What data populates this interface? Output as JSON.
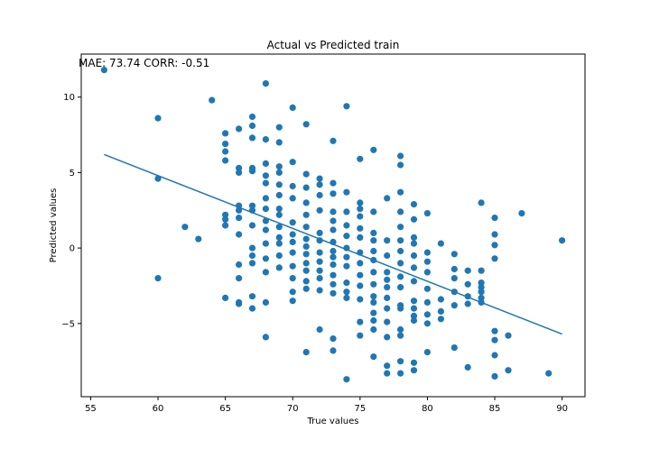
{
  "chart_data": {
    "type": "scatter",
    "title": "Actual vs Predicted train",
    "xlabel": "True values",
    "ylabel": "Predicted values",
    "annotation": "MAE: 73.74   CORR: -0.51",
    "xlim": [
      54.3,
      91.7
    ],
    "ylim": [
      -9.85,
      12.85
    ],
    "xticks": [
      55,
      60,
      65,
      70,
      75,
      80,
      85,
      90
    ],
    "yticks": [
      -5,
      0,
      5,
      10
    ],
    "grid": false,
    "legend": "none",
    "colors": {
      "points": "#1f77b4",
      "line": "#1f77b4"
    },
    "fit_line": {
      "x": [
        56,
        90
      ],
      "y": [
        6.2,
        -5.7
      ]
    },
    "points": [
      [
        56,
        11.8
      ],
      [
        60,
        8.6
      ],
      [
        60,
        4.6
      ],
      [
        60,
        -2.0
      ],
      [
        62,
        1.4
      ],
      [
        63,
        0.6
      ],
      [
        64,
        9.8
      ],
      [
        65,
        7.6
      ],
      [
        65,
        6.9
      ],
      [
        65,
        6.4
      ],
      [
        65,
        5.8
      ],
      [
        65,
        2.2
      ],
      [
        65,
        1.9
      ],
      [
        65,
        1.5
      ],
      [
        65,
        -3.3
      ],
      [
        66,
        7.9
      ],
      [
        66,
        5.3
      ],
      [
        66,
        5.0
      ],
      [
        66,
        2.8
      ],
      [
        66,
        2.5
      ],
      [
        66,
        2.0
      ],
      [
        66,
        0.9
      ],
      [
        66,
        -1.1
      ],
      [
        66,
        -2.0
      ],
      [
        66,
        -3.6
      ],
      [
        66,
        -3.7
      ],
      [
        67,
        8.7
      ],
      [
        67,
        8.1
      ],
      [
        67,
        7.3
      ],
      [
        67,
        5.3
      ],
      [
        67,
        5.1
      ],
      [
        67,
        2.8
      ],
      [
        67,
        2.5
      ],
      [
        67,
        1.5
      ],
      [
        67,
        0.0
      ],
      [
        67,
        -0.5
      ],
      [
        67,
        -1.0
      ],
      [
        67,
        -3.2
      ],
      [
        67,
        -4.0
      ],
      [
        68,
        10.9
      ],
      [
        68,
        7.2
      ],
      [
        68,
        5.6
      ],
      [
        68,
        4.8
      ],
      [
        68,
        4.3
      ],
      [
        68,
        3.3
      ],
      [
        68,
        2.6
      ],
      [
        68,
        1.8
      ],
      [
        68,
        1.2
      ],
      [
        68,
        0.3
      ],
      [
        68,
        -0.7
      ],
      [
        68,
        -1.6
      ],
      [
        68,
        -3.6
      ],
      [
        68,
        -5.9
      ],
      [
        69,
        8.0
      ],
      [
        69,
        7.0
      ],
      [
        69,
        5.4
      ],
      [
        69,
        5.0
      ],
      [
        69,
        4.2
      ],
      [
        69,
        3.5
      ],
      [
        69,
        2.6
      ],
      [
        69,
        2.2
      ],
      [
        69,
        1.4
      ],
      [
        69,
        0.7
      ],
      [
        69,
        0.3
      ],
      [
        69,
        -0.5
      ],
      [
        69,
        -1.3
      ],
      [
        70,
        9.3
      ],
      [
        70,
        5.7
      ],
      [
        70,
        4.1
      ],
      [
        70,
        3.3
      ],
      [
        70,
        1.7
      ],
      [
        70,
        0.9
      ],
      [
        70,
        0.4
      ],
      [
        70,
        -0.3
      ],
      [
        70,
        -1.2
      ],
      [
        70,
        -2.0
      ],
      [
        70,
        -2.9
      ],
      [
        70,
        -3.5
      ],
      [
        71,
        8.2
      ],
      [
        71,
        4.9
      ],
      [
        71,
        4.0
      ],
      [
        71,
        3.0
      ],
      [
        71,
        2.2
      ],
      [
        71,
        1.4
      ],
      [
        71,
        0.6
      ],
      [
        71,
        0.1
      ],
      [
        71,
        -0.4
      ],
      [
        71,
        -1.0
      ],
      [
        71,
        -1.5
      ],
      [
        71,
        -2.2
      ],
      [
        71,
        -2.7
      ],
      [
        71,
        -6.9
      ],
      [
        72,
        4.6
      ],
      [
        72,
        4.2
      ],
      [
        72,
        3.5
      ],
      [
        72,
        2.5
      ],
      [
        72,
        1.0
      ],
      [
        72,
        0.5
      ],
      [
        72,
        -0.3
      ],
      [
        72,
        -0.9
      ],
      [
        72,
        -1.5
      ],
      [
        72,
        -2.0
      ],
      [
        72,
        -2.8
      ],
      [
        72,
        -5.4
      ],
      [
        73,
        7.1
      ],
      [
        73,
        4.3
      ],
      [
        73,
        3.6
      ],
      [
        73,
        2.4
      ],
      [
        73,
        1.8
      ],
      [
        73,
        1.2
      ],
      [
        73,
        0.4
      ],
      [
        73,
        -0.2
      ],
      [
        73,
        -0.6
      ],
      [
        73,
        -1.1
      ],
      [
        73,
        -1.8
      ],
      [
        73,
        -2.4
      ],
      [
        73,
        -3.0
      ],
      [
        73,
        -6.0
      ],
      [
        73,
        -6.8
      ],
      [
        74,
        9.4
      ],
      [
        74,
        3.7
      ],
      [
        74,
        2.4
      ],
      [
        74,
        1.5
      ],
      [
        74,
        0.8
      ],
      [
        74,
        0.0
      ],
      [
        74,
        -0.6
      ],
      [
        74,
        -1.2
      ],
      [
        74,
        -2.3
      ],
      [
        74,
        -2.9
      ],
      [
        74,
        -3.3
      ],
      [
        74,
        -8.7
      ],
      [
        75,
        5.9
      ],
      [
        75,
        3.0
      ],
      [
        75,
        2.6
      ],
      [
        75,
        2.1
      ],
      [
        75,
        1.3
      ],
      [
        75,
        0.7
      ],
      [
        75,
        -0.3
      ],
      [
        75,
        -1.0
      ],
      [
        75,
        -1.8
      ],
      [
        75,
        -2.5
      ],
      [
        75,
        -3.4
      ],
      [
        75,
        -4.9
      ],
      [
        75,
        -5.8
      ],
      [
        76,
        6.5
      ],
      [
        76,
        2.4
      ],
      [
        76,
        1.0
      ],
      [
        76,
        0.5
      ],
      [
        76,
        -0.2
      ],
      [
        76,
        -0.8
      ],
      [
        76,
        -1.6
      ],
      [
        76,
        -2.4
      ],
      [
        76,
        -3.2
      ],
      [
        76,
        -3.6
      ],
      [
        76,
        -4.3
      ],
      [
        76,
        -4.8
      ],
      [
        76,
        -5.4
      ],
      [
        76,
        -7.2
      ],
      [
        77,
        3.3
      ],
      [
        77,
        0.5
      ],
      [
        77,
        -0.5
      ],
      [
        77,
        -1.6
      ],
      [
        77,
        -2.1
      ],
      [
        77,
        -2.6
      ],
      [
        77,
        -3.3
      ],
      [
        77,
        -4.0
      ],
      [
        77,
        -4.9
      ],
      [
        77,
        -5.9
      ],
      [
        77,
        -7.8
      ],
      [
        77,
        -8.3
      ],
      [
        78,
        6.1
      ],
      [
        78,
        5.5
      ],
      [
        78,
        3.7
      ],
      [
        78,
        2.4
      ],
      [
        78,
        1.4
      ],
      [
        78,
        0.5
      ],
      [
        78,
        -0.2
      ],
      [
        78,
        -1.0
      ],
      [
        78,
        -1.9
      ],
      [
        78,
        -2.6
      ],
      [
        78,
        -3.8
      ],
      [
        78,
        -4.0
      ],
      [
        78,
        -5.4
      ],
      [
        78,
        -5.8
      ],
      [
        78,
        -7.5
      ],
      [
        78,
        -8.3
      ],
      [
        79,
        2.9
      ],
      [
        79,
        1.9
      ],
      [
        79,
        0.7
      ],
      [
        79,
        0.3
      ],
      [
        79,
        -0.5
      ],
      [
        79,
        -1.3
      ],
      [
        79,
        -2.2
      ],
      [
        79,
        -3.5
      ],
      [
        79,
        -4.0
      ],
      [
        79,
        -4.5
      ],
      [
        79,
        -4.8
      ],
      [
        79,
        -7.6
      ],
      [
        79,
        -8.1
      ],
      [
        80,
        2.3
      ],
      [
        80,
        -0.3
      ],
      [
        80,
        -0.9
      ],
      [
        80,
        -1.6
      ],
      [
        80,
        -2.7
      ],
      [
        80,
        -3.6
      ],
      [
        80,
        -4.4
      ],
      [
        80,
        -5.0
      ],
      [
        80,
        -6.9
      ],
      [
        81,
        0.3
      ],
      [
        81,
        -3.4
      ],
      [
        81,
        -4.2
      ],
      [
        81,
        -4.7
      ],
      [
        82,
        -0.4
      ],
      [
        82,
        -1.4
      ],
      [
        82,
        -2.0
      ],
      [
        82,
        -2.9
      ],
      [
        82,
        -3.8
      ],
      [
        82,
        -6.6
      ],
      [
        83,
        -1.5
      ],
      [
        83,
        -2.4
      ],
      [
        83,
        -3.2
      ],
      [
        83,
        -3.7
      ],
      [
        83,
        -7.9
      ],
      [
        84,
        3.0
      ],
      [
        84,
        -1.5
      ],
      [
        84,
        -2.3
      ],
      [
        84,
        -2.6
      ],
      [
        84,
        -2.9
      ],
      [
        84,
        -3.3
      ],
      [
        84,
        -3.6
      ],
      [
        85,
        2.0
      ],
      [
        85,
        0.9
      ],
      [
        85,
        0.2
      ],
      [
        85,
        -0.7
      ],
      [
        85,
        -5.5
      ],
      [
        85,
        -6.1
      ],
      [
        85,
        -7.1
      ],
      [
        85,
        -8.5
      ],
      [
        86,
        -5.8
      ],
      [
        86,
        -8.1
      ],
      [
        87,
        2.3
      ],
      [
        89,
        -8.3
      ],
      [
        90,
        0.5
      ]
    ]
  }
}
